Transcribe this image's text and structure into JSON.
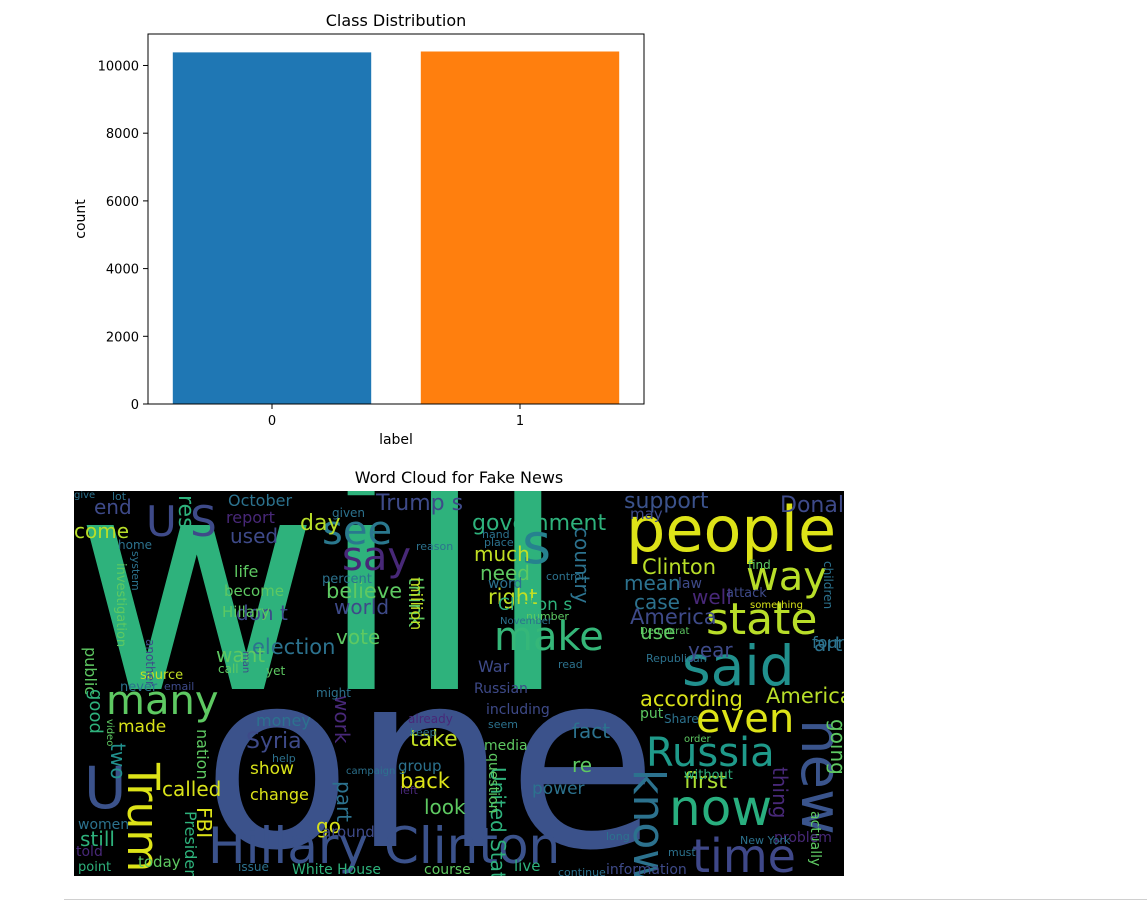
{
  "chart_data": [
    {
      "type": "bar",
      "title": "Class Distribution",
      "xlabel": "label",
      "ylabel": "count",
      "categories": [
        "0",
        "1"
      ],
      "values": [
        10387,
        10413
      ],
      "ylim": [
        0,
        10930
      ],
      "yticks": [
        0,
        2000,
        4000,
        6000,
        8000,
        10000
      ],
      "colors": [
        "#1f77b4",
        "#ff7f0e"
      ],
      "grid": false
    },
    {
      "type": "wordcloud",
      "title": "Word Cloud for Fake News",
      "background": "#000000"
    }
  ],
  "wordcloud": {
    "words": [
      {
        "text": "will",
        "color": "#2eb27c"
      },
      {
        "text": "one",
        "color": "#3b528b"
      },
      {
        "text": "people",
        "color": "#dde318"
      },
      {
        "text": "said",
        "color": "#21908d"
      },
      {
        "text": "Hillary Clinton",
        "color": "#3b528b"
      },
      {
        "text": "state",
        "color": "#b8de29"
      },
      {
        "text": "now",
        "color": "#29af7f"
      },
      {
        "text": "time",
        "color": "#3f4889"
      },
      {
        "text": "Russia",
        "color": "#1f9a8a"
      },
      {
        "text": "even",
        "color": "#dde318"
      },
      {
        "text": "make",
        "color": "#35b779"
      },
      {
        "text": "many",
        "color": "#5ec962"
      },
      {
        "text": "Trump",
        "color": "#dde318"
      },
      {
        "text": "way",
        "color": "#b8de29"
      },
      {
        "text": "new",
        "color": "#3a548c"
      },
      {
        "text": "know",
        "color": "#2c728e"
      },
      {
        "text": "say",
        "color": "#482878"
      },
      {
        "text": "see",
        "color": "#2a788e"
      },
      {
        "text": "s",
        "color": "#26828e"
      },
      {
        "text": "U S",
        "color": "#3e4a89"
      },
      {
        "text": "U",
        "color": "#3b528b"
      },
      {
        "text": "government",
        "color": "#2eb27c"
      },
      {
        "text": "support",
        "color": "#3b528b"
      },
      {
        "text": "Donald Trump",
        "color": "#3e4a89"
      },
      {
        "text": "day",
        "color": "#b8de29"
      },
      {
        "text": "right",
        "color": "#c2df23"
      },
      {
        "text": "election",
        "color": "#2c728e"
      },
      {
        "text": "according",
        "color": "#d8e219"
      },
      {
        "text": "American",
        "color": "#b8de29"
      },
      {
        "text": "Clinton",
        "color": "#b8de29"
      },
      {
        "text": "America",
        "color": "#3e4a89"
      },
      {
        "text": "first",
        "color": "#aadc32"
      },
      {
        "text": "country",
        "color": "#2c728e"
      },
      {
        "text": "believe",
        "color": "#5ec962"
      },
      {
        "text": "world",
        "color": "#3e4a89"
      },
      {
        "text": "think",
        "color": "#5ec962"
      },
      {
        "text": "vote",
        "color": "#5ec962"
      },
      {
        "text": "don t",
        "color": "#3e4a89"
      },
      {
        "text": "want",
        "color": "#5ec962"
      },
      {
        "text": "Syria",
        "color": "#3e4a89"
      },
      {
        "text": "take",
        "color": "#c2df23"
      },
      {
        "text": "back",
        "color": "#dde318"
      },
      {
        "text": "fact",
        "color": "#2c728e"
      },
      {
        "text": "two",
        "color": "#21908d"
      },
      {
        "text": "called",
        "color": "#d8e219"
      },
      {
        "text": "work",
        "color": "#482878"
      },
      {
        "text": "look",
        "color": "#5ec962"
      },
      {
        "text": "part",
        "color": "#2c728e"
      },
      {
        "text": "go",
        "color": "#d8e219"
      },
      {
        "text": "FBI",
        "color": "#dde318"
      },
      {
        "text": "still",
        "color": "#2eb27c"
      },
      {
        "text": "end",
        "color": "#3e4a89"
      },
      {
        "text": "come",
        "color": "#b8de29"
      },
      {
        "text": "used",
        "color": "#3e4a89"
      },
      {
        "text": "much",
        "color": "#c2df23"
      },
      {
        "text": "need",
        "color": "#5ec962"
      },
      {
        "text": "mean",
        "color": "#2c728e"
      },
      {
        "text": "case",
        "color": "#2c728e"
      },
      {
        "text": "well",
        "color": "#482878"
      },
      {
        "text": "use",
        "color": "#5ec962"
      },
      {
        "text": "year",
        "color": "#3e4a89"
      },
      {
        "text": "article",
        "color": "#2c728e"
      },
      {
        "text": "re",
        "color": "#5ec962"
      },
      {
        "text": "thing",
        "color": "#482878"
      },
      {
        "text": "going",
        "color": "#5ec962"
      },
      {
        "text": "United State",
        "color": "#2eb27c"
      },
      {
        "text": "power",
        "color": "#2c728e"
      },
      {
        "text": "result",
        "color": "#2eb27c"
      },
      {
        "text": "report",
        "color": "#482878"
      },
      {
        "text": "October",
        "color": "#2c728e"
      },
      {
        "text": "Trump s",
        "color": "#3e4a89"
      },
      {
        "text": "may",
        "color": "#3e4a89"
      },
      {
        "text": "Clinton s",
        "color": "#2eb27c"
      },
      {
        "text": "War",
        "color": "#3e4a89"
      },
      {
        "text": "million",
        "color": "#c2df23"
      },
      {
        "text": "life",
        "color": "#5ec962"
      },
      {
        "text": "become",
        "color": "#5ec962"
      },
      {
        "text": "Hillary",
        "color": "#5ec962"
      },
      {
        "text": "public",
        "color": "#5ec962"
      },
      {
        "text": "good",
        "color": "#2eb27c"
      },
      {
        "text": "made",
        "color": "#d8e219"
      },
      {
        "text": "nation",
        "color": "#5ec962"
      },
      {
        "text": "money",
        "color": "#2c728e"
      },
      {
        "text": "show",
        "color": "#d8e219"
      },
      {
        "text": "change",
        "color": "#dde318"
      },
      {
        "text": "group",
        "color": "#2c728e"
      },
      {
        "text": "question",
        "color": "#5ec962"
      },
      {
        "text": "Russian",
        "color": "#3e4a89"
      },
      {
        "text": "including",
        "color": "#3e4a89"
      },
      {
        "text": "media",
        "color": "#5ec962"
      },
      {
        "text": "put",
        "color": "#5ec962"
      },
      {
        "text": "without",
        "color": "#2eb27c"
      },
      {
        "text": "women",
        "color": "#2c728e"
      },
      {
        "text": "told",
        "color": "#482878"
      },
      {
        "text": "point",
        "color": "#2eb27c"
      },
      {
        "text": "today",
        "color": "#5ec962"
      },
      {
        "text": "around",
        "color": "#3e4a89"
      },
      {
        "text": "President",
        "color": "#2eb27c"
      },
      {
        "text": "live",
        "color": "#2eb27c"
      },
      {
        "text": "course",
        "color": "#5ec962"
      },
      {
        "text": "information",
        "color": "#3e4a89"
      },
      {
        "text": "White House",
        "color": "#2eb27c"
      },
      {
        "text": "issue",
        "color": "#2c728e"
      },
      {
        "text": "actually",
        "color": "#5ec962"
      },
      {
        "text": "problem",
        "color": "#482878"
      },
      {
        "text": "must",
        "color": "#2c728e"
      },
      {
        "text": "never",
        "color": "#2c728e"
      },
      {
        "text": "source",
        "color": "#c2df23"
      },
      {
        "text": "call",
        "color": "#5ec962"
      },
      {
        "text": "yet",
        "color": "#5ec962"
      },
      {
        "text": "might",
        "color": "#2c728e"
      },
      {
        "text": "already",
        "color": "#482878"
      },
      {
        "text": "keep",
        "color": "#2c728e"
      },
      {
        "text": "seem",
        "color": "#2c728e"
      },
      {
        "text": "Share",
        "color": "#2c728e"
      },
      {
        "text": "order",
        "color": "#5ec962"
      },
      {
        "text": "campaign",
        "color": "#2c728e"
      },
      {
        "text": "help",
        "color": "#2c728e"
      },
      {
        "text": "left",
        "color": "#482878"
      },
      {
        "text": "continue",
        "color": "#2c728e"
      },
      {
        "text": "long",
        "color": "#2c728e"
      },
      {
        "text": "New York",
        "color": "#2c728e"
      },
      {
        "text": "read",
        "color": "#2c728e"
      },
      {
        "text": "word",
        "color": "#2c728e"
      },
      {
        "text": "control",
        "color": "#2c728e"
      },
      {
        "text": "hand",
        "color": "#2c728e"
      },
      {
        "text": "place",
        "color": "#2c728e"
      },
      {
        "text": "reason",
        "color": "#2c728e"
      },
      {
        "text": "given",
        "color": "#2c728e"
      },
      {
        "text": "percent",
        "color": "#2c728e"
      },
      {
        "text": "number",
        "color": "#5ec962"
      },
      {
        "text": "November",
        "color": "#2c728e"
      },
      {
        "text": "Democrat",
        "color": "#5ec962"
      },
      {
        "text": "Republican",
        "color": "#2c728e"
      },
      {
        "text": "attack",
        "color": "#3e4a89"
      },
      {
        "text": "something",
        "color": "#d8e219"
      },
      {
        "text": "find",
        "color": "#5ec962"
      },
      {
        "text": "children",
        "color": "#2c728e"
      },
      {
        "text": "found",
        "color": "#2c728e"
      },
      {
        "text": "law",
        "color": "#3e4a89"
      },
      {
        "text": "another",
        "color": "#3e4a89"
      },
      {
        "text": "man",
        "color": "#3e4a89"
      },
      {
        "text": "email",
        "color": "#3e4a89"
      },
      {
        "text": "investigation",
        "color": "#5ec962"
      },
      {
        "text": "system",
        "color": "#2c728e"
      },
      {
        "text": "home",
        "color": "#2c728e"
      },
      {
        "text": "lot",
        "color": "#2c728e"
      },
      {
        "text": "video",
        "color": "#5ec962"
      },
      {
        "text": "give",
        "color": "#2c728e"
      }
    ]
  }
}
